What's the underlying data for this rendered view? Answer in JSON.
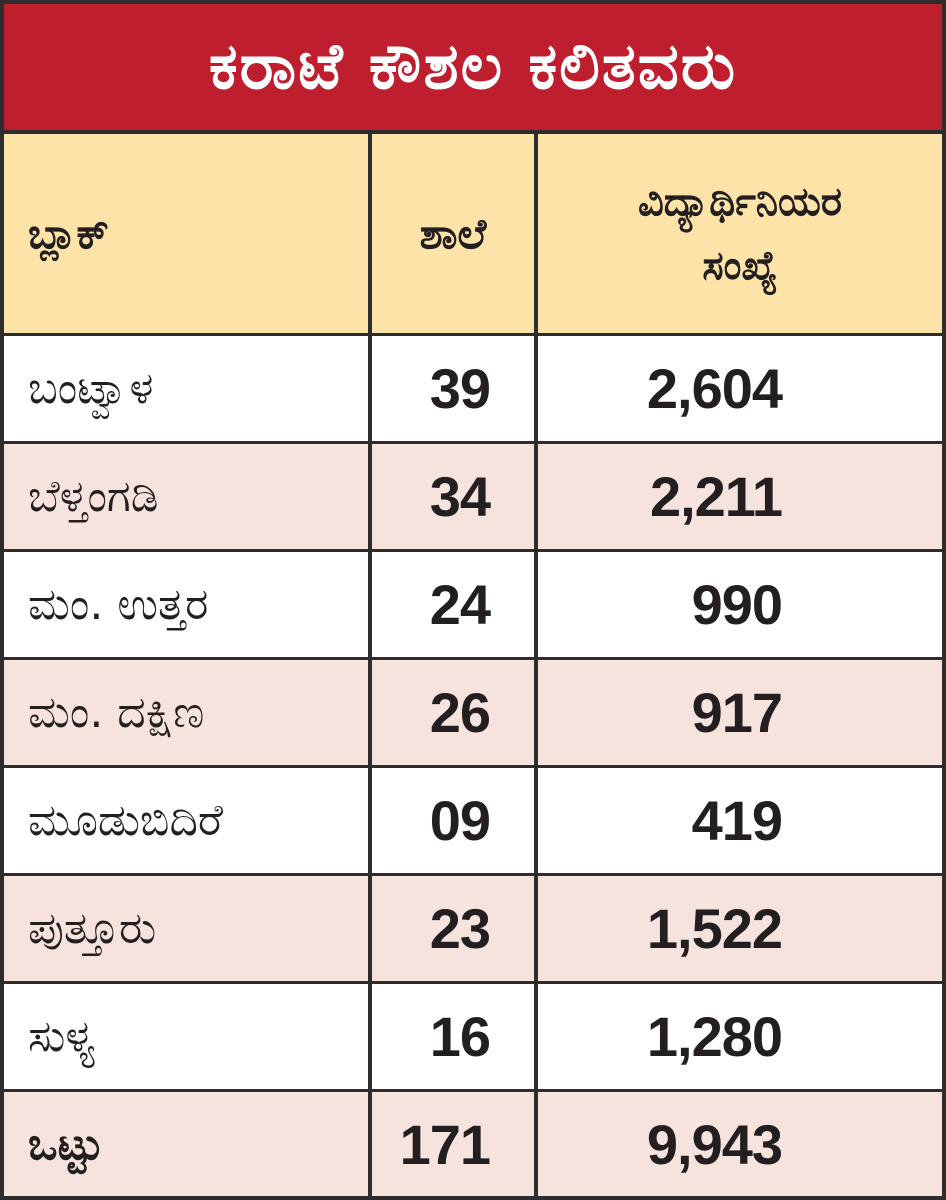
{
  "title": "ಕರಾಟೆ ಕೌಶಲ ಕಲಿತವರು",
  "header": {
    "block": "ಬ್ಲಾಕ್",
    "schools": "ಶಾಲೆ",
    "students_line1": "ವಿದ್ಯಾರ್ಥಿನಿಯರ",
    "students_line2": "ಸಂಖ್ಯೆ"
  },
  "rows": [
    {
      "block": "ಬಂಟ್ವಾಳ",
      "schools": "39",
      "students": "2,604"
    },
    {
      "block": "ಬೆಳ್ತಂಗಡಿ",
      "schools": "34",
      "students": "2,211"
    },
    {
      "block": "ಮಂ. ಉತ್ತರ",
      "schools": "24",
      "students": "990"
    },
    {
      "block": "ಮಂ. ದಕ್ಷಿಣ",
      "schools": "26",
      "students": "917"
    },
    {
      "block": "ಮೂಡುಬಿದಿರೆ",
      "schools": "09",
      "students": "419"
    },
    {
      "block": "ಪುತ್ತೂರು",
      "schools": "23",
      "students": "1,522"
    },
    {
      "block": "ಸುಳ್ಯ",
      "schools": "16",
      "students": "1,280"
    }
  ],
  "total": {
    "label": "ಒಟ್ಟು",
    "schools": "171",
    "students": "9,943"
  },
  "colors": {
    "title_bg": "#be1e2d",
    "header_bg": "#fde3a7",
    "row_alt_bg": "#f6e3de",
    "border": "#2d2d2d"
  }
}
